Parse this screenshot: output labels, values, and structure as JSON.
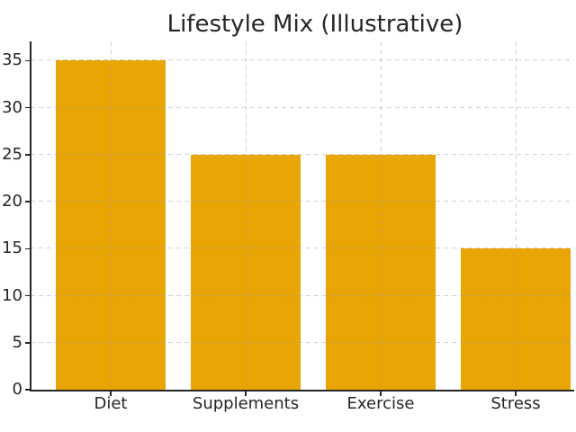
{
  "chart_data": {
    "type": "bar",
    "title": "Lifestyle Mix (Illustrative)",
    "categories": [
      "Diet",
      "Supplements",
      "Exercise",
      "Stress"
    ],
    "values": [
      35,
      25,
      25,
      15
    ],
    "xlabel": "",
    "ylabel": "",
    "ylim": [
      0,
      37
    ],
    "yticks": [
      0,
      5,
      10,
      15,
      20,
      25,
      30,
      35
    ],
    "grid": "both",
    "grid_style": "dashed",
    "grid_above_bars": true,
    "legend_position": "none",
    "bar_color": "#E8A504"
  },
  "colors": {
    "bar": "#E8A504",
    "grid": "#c9c9c9",
    "axis": "#262626",
    "text": "#262626",
    "background": "#ffffff"
  }
}
